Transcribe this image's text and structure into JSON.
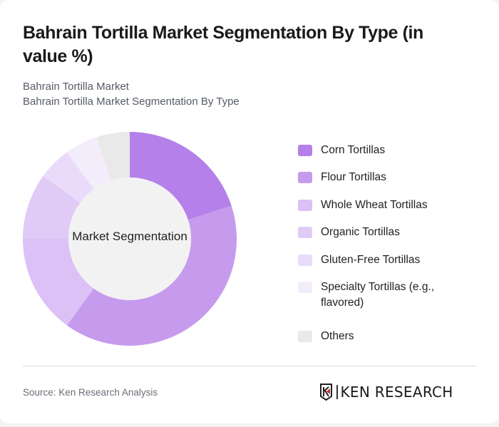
{
  "header": {
    "title": "Bahrain Tortilla Market Segmentation By Type (in value %)",
    "subtitle_1": "Bahrain Tortilla Market",
    "subtitle_2": "Bahrain Tortilla Market Segmentation By Type"
  },
  "chart": {
    "center_label": "Market Segmentation"
  },
  "legend": [
    {
      "label": "Corn Tortillas",
      "color": "#b580ea"
    },
    {
      "label": "Flour Tortillas",
      "color": "#c69bee"
    },
    {
      "label": "Whole Wheat Tortillas",
      "color": "#dbc1f6"
    },
    {
      "label": "Organic Tortillas",
      "color": "#e0cbf6"
    },
    {
      "label": "Gluten-Free Tortillas",
      "color": "#e9dbf9"
    },
    {
      "label": "Specialty Tortillas (e.g., flavored)",
      "color": "#f3ecfb"
    },
    {
      "label": "Others",
      "color": "#e9e9e9"
    }
  ],
  "footer": {
    "source": "Source: Ken Research Analysis",
    "logo_text": "KEN RESEARCH"
  },
  "chart_data": {
    "type": "pie",
    "variant": "donut",
    "title": "Bahrain Tortilla Market Segmentation By Type (in value %)",
    "center_label": "Market Segmentation",
    "categories": [
      "Corn Tortillas",
      "Flour Tortillas",
      "Whole Wheat Tortillas",
      "Organic Tortillas",
      "Gluten-Free Tortillas",
      "Specialty Tortillas (e.g., flavored)",
      "Others"
    ],
    "values": [
      20,
      40,
      15,
      10,
      5,
      5,
      5
    ],
    "colors": [
      "#b580ea",
      "#c69bee",
      "#dbc1f6",
      "#e0cbf6",
      "#e9dbf9",
      "#f3ecfb",
      "#e9e9e9"
    ],
    "unit": "%",
    "legend_position": "right"
  }
}
